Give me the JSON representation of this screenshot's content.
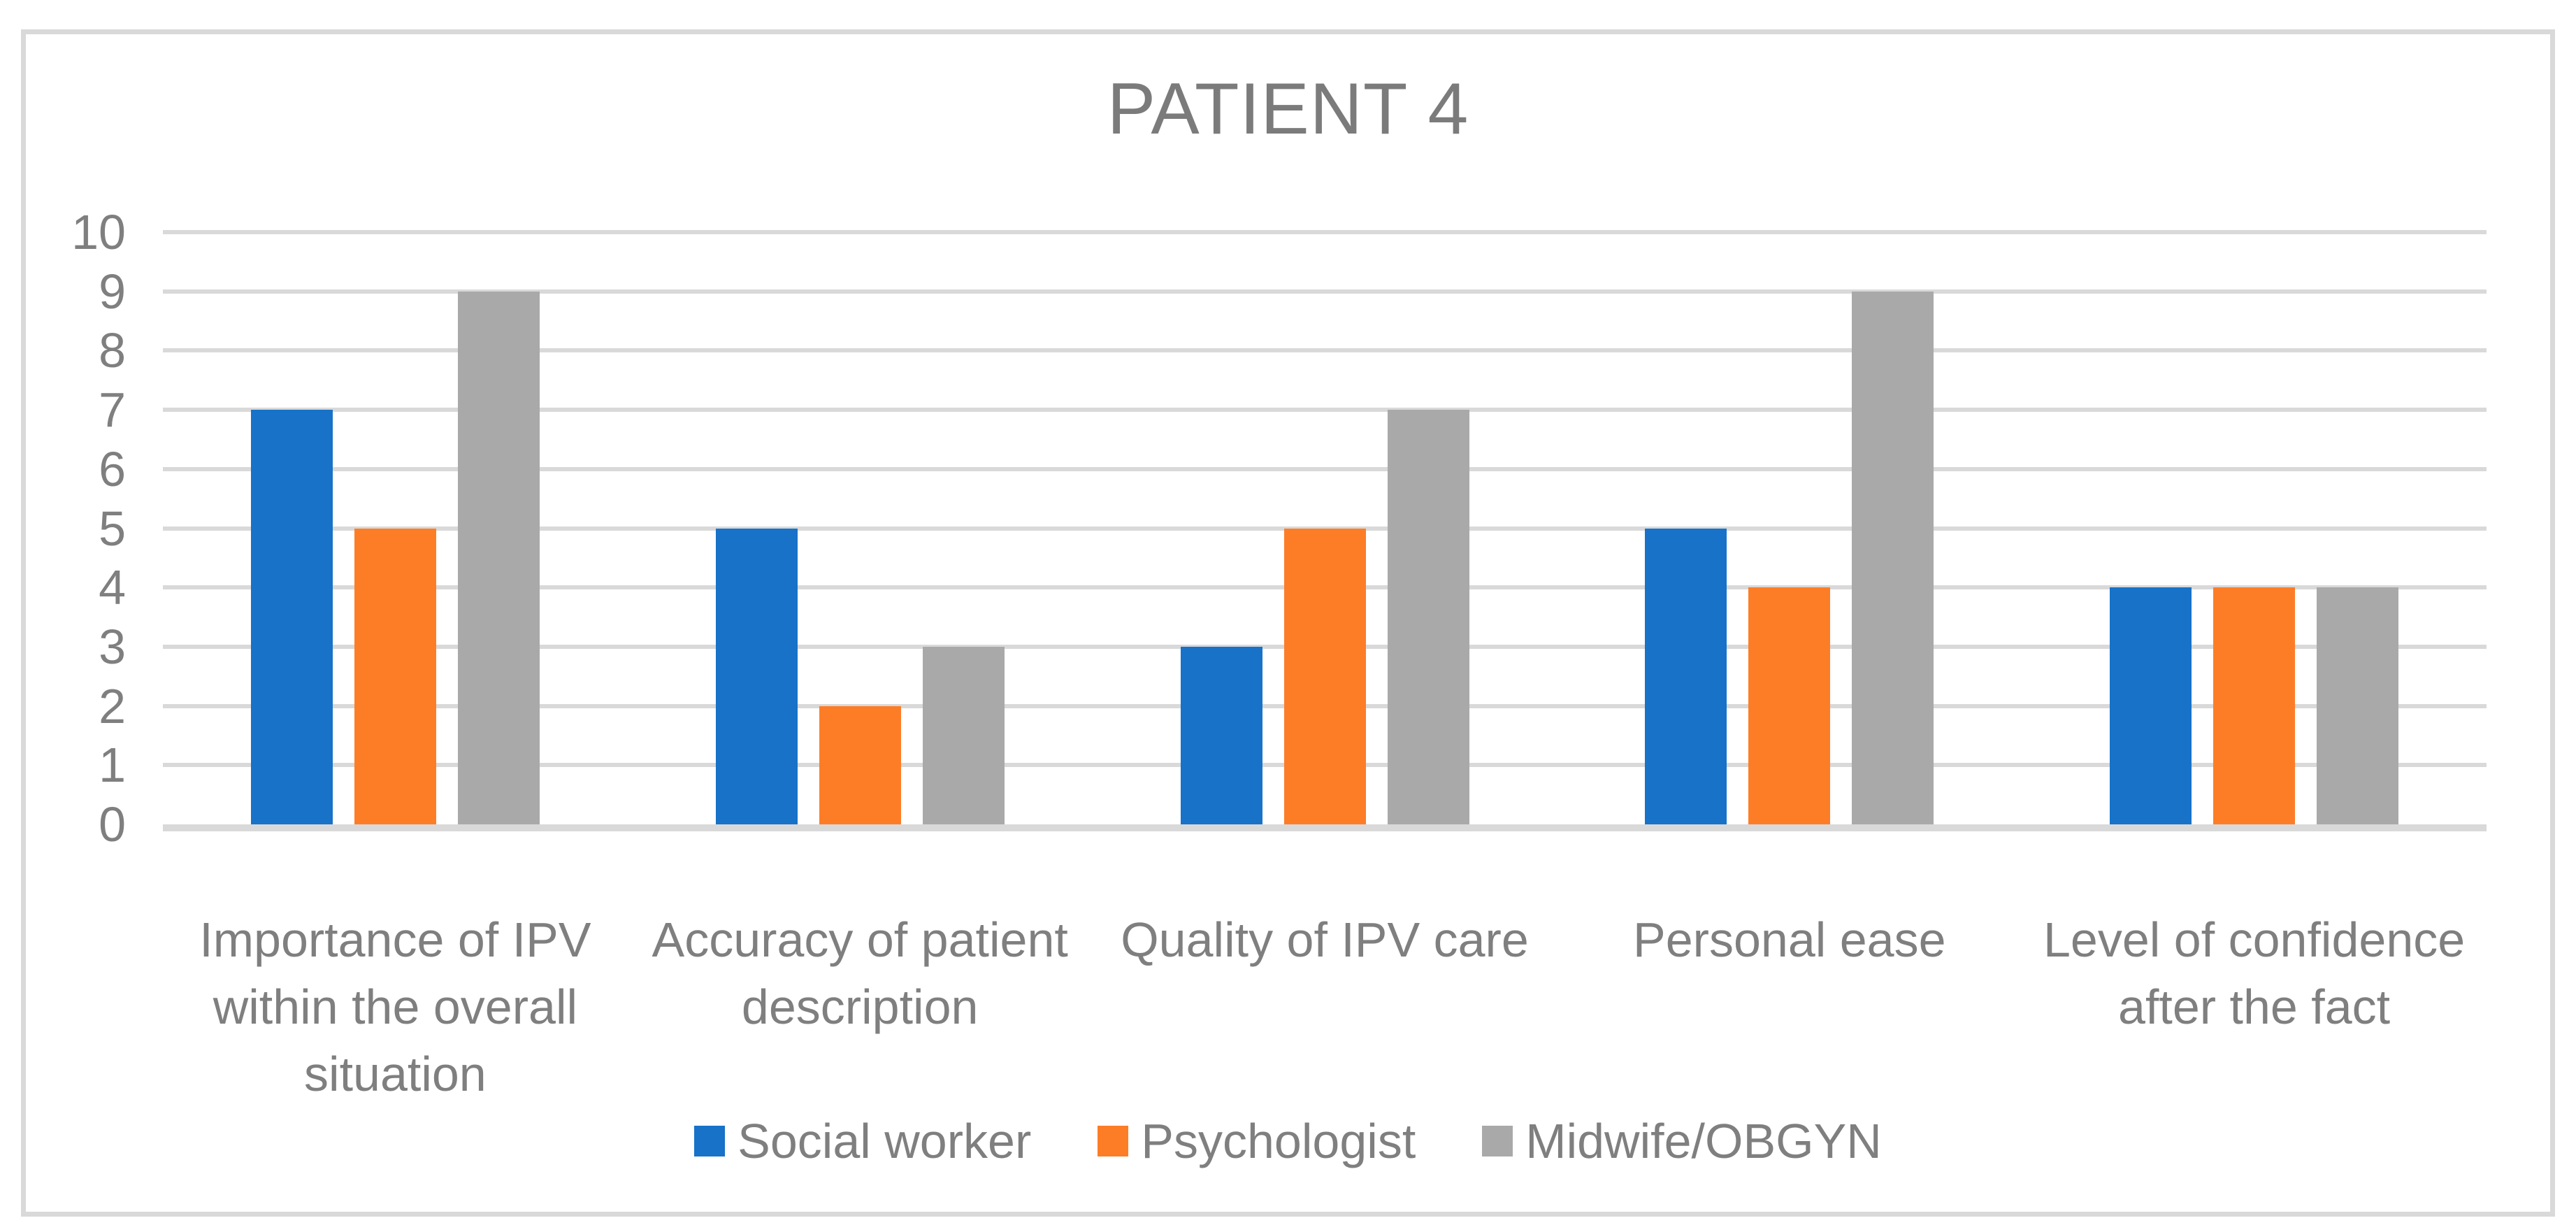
{
  "chart_data": {
    "type": "bar",
    "title": "PATIENT 4",
    "categories": [
      "Importance of IPV within the overall situation",
      "Accuracy of patient description",
      "Quality of IPV care",
      "Personal ease",
      "Level of confidence after the fact"
    ],
    "series": [
      {
        "name": "Social worker",
        "color": "#1772C8",
        "values": [
          7,
          5,
          3,
          5,
          4
        ]
      },
      {
        "name": "Psychologist",
        "color": "#FD7D27",
        "values": [
          5,
          2,
          5,
          4,
          4
        ]
      },
      {
        "name": "Midwife/OBGYN",
        "color": "#A9A9A9",
        "values": [
          9,
          3,
          7,
          9,
          4
        ]
      }
    ],
    "xlabel": "",
    "ylabel": "",
    "ylim": [
      0,
      10
    ],
    "yticks": [
      0,
      1,
      2,
      3,
      4,
      5,
      6,
      7,
      8,
      9,
      10
    ],
    "grid": true,
    "legend_position": "bottom",
    "styles": {
      "background": "#FFFFFF",
      "frame_border_color": "#D9D9D9",
      "gridline_color": "#D9D9D9",
      "axis_text_color": "#7F7F7F",
      "title_color": "#7B7B7B"
    }
  }
}
